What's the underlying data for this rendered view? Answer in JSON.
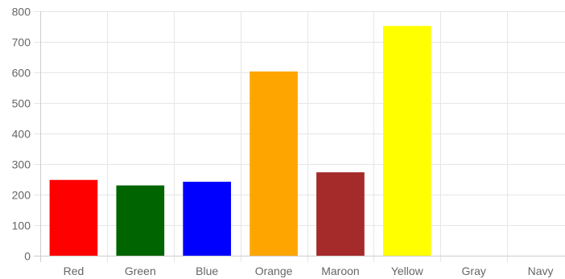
{
  "chart_data": {
    "type": "bar",
    "title": "",
    "xlabel": "",
    "ylabel": "",
    "categories": [
      "Red",
      "Green",
      "Blue",
      "Orange",
      "Maroon",
      "Yellow",
      "Gray",
      "Navy"
    ],
    "values": [
      248,
      230,
      242,
      603,
      273,
      752,
      0,
      0
    ],
    "colors": [
      "#ff0000",
      "#006400",
      "#0000ff",
      "#ffa500",
      "#a52a2a",
      "#ffff00",
      "#808080",
      "#000080"
    ],
    "ylim": [
      0,
      800
    ],
    "yticks": [
      "0",
      "100",
      "200",
      "300",
      "400",
      "500",
      "600",
      "700",
      "800"
    ],
    "grid": true,
    "legend": "none"
  }
}
